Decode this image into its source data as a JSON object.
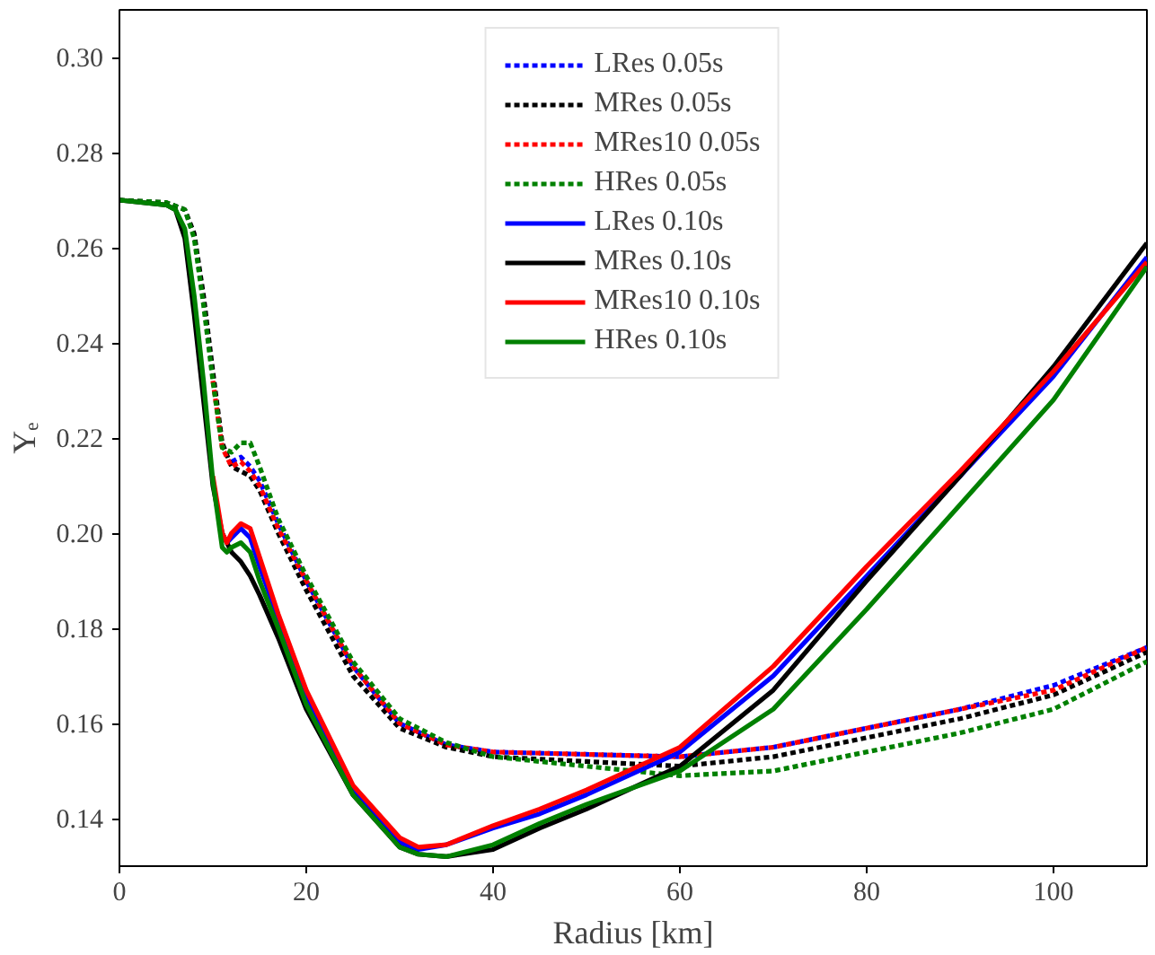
{
  "chart_data": {
    "type": "line",
    "xlabel": "Radius [km]",
    "ylabel": "Yₑ",
    "xlim": [
      0,
      110
    ],
    "ylim": [
      0.13,
      0.31
    ],
    "xticks": [
      0,
      20,
      40,
      60,
      80,
      100
    ],
    "yticks": [
      {
        "value": 0.14,
        "label": "0.14"
      },
      {
        "value": 0.16,
        "label": "0.16"
      },
      {
        "value": 0.18,
        "label": "0.18"
      },
      {
        "value": 0.2,
        "label": "0.20"
      },
      {
        "value": 0.22,
        "label": "0.22"
      },
      {
        "value": 0.24,
        "label": "0.24"
      },
      {
        "value": 0.26,
        "label": "0.26"
      },
      {
        "value": 0.28,
        "label": "0.28"
      },
      {
        "value": 0.3,
        "label": "0.30"
      }
    ],
    "grid": false,
    "legend": "top",
    "marker": "none",
    "series": [
      {
        "name": "LRes 0.05s",
        "color": "#0000ff",
        "line_style": "dotted",
        "x": [
          12,
          13,
          14,
          15,
          17,
          20,
          25,
          30,
          35,
          40,
          50,
          60,
          70,
          80,
          90,
          100,
          110
        ],
        "values": [
          0.215,
          0.216,
          0.214,
          0.211,
          0.202,
          0.19,
          0.172,
          0.16,
          0.1555,
          0.154,
          0.1535,
          0.153,
          0.155,
          0.159,
          0.163,
          0.168,
          0.176
        ]
      },
      {
        "name": "MRes 0.05s",
        "color": "#000000",
        "line_style": "dotted",
        "x": [
          0,
          5,
          7,
          8,
          9,
          10,
          11,
          12,
          13,
          14,
          15,
          17,
          20,
          25,
          30,
          35,
          40,
          50,
          60,
          70,
          80,
          90,
          100,
          110
        ],
        "values": [
          0.27,
          0.2695,
          0.268,
          0.263,
          0.25,
          0.234,
          0.219,
          0.214,
          0.213,
          0.212,
          0.209,
          0.2,
          0.188,
          0.17,
          0.159,
          0.155,
          0.153,
          0.152,
          0.151,
          0.153,
          0.157,
          0.161,
          0.166,
          0.175
        ]
      },
      {
        "name": "MRes10 0.05s",
        "color": "#ff0000",
        "line_style": "dotted",
        "x": [
          10,
          11,
          12,
          13,
          14,
          15,
          17,
          20,
          25,
          30,
          35,
          40,
          50,
          60,
          70,
          80,
          90,
          100,
          110
        ],
        "values": [
          0.232,
          0.218,
          0.214,
          0.215,
          0.213,
          0.21,
          0.201,
          0.19,
          0.172,
          0.16,
          0.1555,
          0.154,
          0.1535,
          0.153,
          0.155,
          0.159,
          0.163,
          0.167,
          0.176
        ]
      },
      {
        "name": "HRes 0.05s",
        "color": "#008000",
        "line_style": "dotted",
        "x": [
          0,
          5,
          7,
          8,
          9,
          10,
          11,
          12,
          13,
          14,
          15,
          17,
          20,
          25,
          30,
          35,
          40,
          50,
          60,
          70,
          80,
          90,
          100,
          110
        ],
        "values": [
          0.27,
          0.2695,
          0.268,
          0.262,
          0.248,
          0.232,
          0.218,
          0.217,
          0.219,
          0.219,
          0.214,
          0.203,
          0.191,
          0.173,
          0.161,
          0.156,
          0.153,
          0.151,
          0.149,
          0.15,
          0.154,
          0.158,
          0.163,
          0.173
        ]
      },
      {
        "name": "LRes 0.10s",
        "color": "#0000ff",
        "line_style": "solid",
        "x": [
          11.5,
          12,
          13,
          14,
          15,
          17,
          20,
          25,
          30,
          32,
          35,
          40,
          45,
          50,
          60,
          70,
          80,
          90,
          100,
          110
        ],
        "values": [
          0.198,
          0.199,
          0.201,
          0.199,
          0.193,
          0.182,
          0.165,
          0.146,
          0.135,
          0.1335,
          0.1345,
          0.138,
          0.141,
          0.145,
          0.154,
          0.17,
          0.191,
          0.212,
          0.233,
          0.258
        ]
      },
      {
        "name": "MRes 0.10s",
        "color": "#000000",
        "line_style": "solid",
        "x": [
          0,
          5,
          6,
          7,
          8,
          9,
          10,
          11,
          11.5,
          12,
          13,
          14,
          15,
          17,
          20,
          25,
          30,
          32,
          35,
          40,
          45,
          50,
          60,
          70,
          80,
          90,
          100,
          110
        ],
        "values": [
          0.27,
          0.269,
          0.268,
          0.262,
          0.246,
          0.228,
          0.21,
          0.2,
          0.198,
          0.196,
          0.194,
          0.191,
          0.187,
          0.178,
          0.163,
          0.145,
          0.134,
          0.1325,
          0.132,
          0.1335,
          0.138,
          0.142,
          0.151,
          0.167,
          0.19,
          0.212,
          0.235,
          0.261
        ]
      },
      {
        "name": "MRes10 0.10s",
        "color": "#ff0000",
        "line_style": "solid",
        "x": [
          10,
          11,
          11.5,
          12,
          13,
          14,
          15,
          17,
          20,
          25,
          30,
          32,
          35,
          40,
          45,
          50,
          60,
          70,
          80,
          90,
          100,
          110
        ],
        "values": [
          0.212,
          0.2,
          0.198,
          0.2,
          0.202,
          0.201,
          0.195,
          0.183,
          0.167,
          0.147,
          0.136,
          0.134,
          0.1345,
          0.1385,
          0.142,
          0.146,
          0.155,
          0.172,
          0.193,
          0.213,
          0.234,
          0.257
        ]
      },
      {
        "name": "HRes 0.10s",
        "color": "#008000",
        "line_style": "solid",
        "x": [
          0,
          5,
          6,
          7,
          8,
          9,
          10,
          11,
          11.5,
          12,
          13,
          14,
          15,
          17,
          20,
          25,
          30,
          32,
          35,
          40,
          45,
          50,
          60,
          70,
          80,
          90,
          100,
          110
        ],
        "values": [
          0.27,
          0.269,
          0.268,
          0.264,
          0.25,
          0.232,
          0.211,
          0.197,
          0.196,
          0.197,
          0.198,
          0.196,
          0.19,
          0.18,
          0.164,
          0.145,
          0.134,
          0.1325,
          0.132,
          0.1345,
          0.139,
          0.143,
          0.15,
          0.163,
          0.184,
          0.206,
          0.228,
          0.256
        ]
      }
    ]
  }
}
